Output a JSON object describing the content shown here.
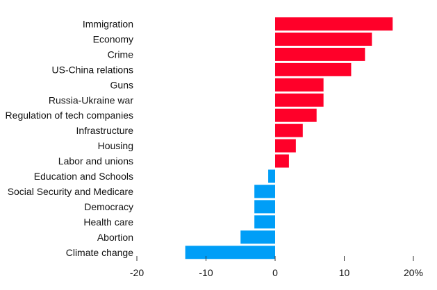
{
  "chart_data": {
    "type": "bar",
    "orientation": "horizontal",
    "categories": [
      "Immigration",
      "Economy",
      "Crime",
      "US-China relations",
      "Guns",
      "Russia-Ukraine war",
      "Regulation of tech companies",
      "Infrastructure",
      "Housing",
      "Labor and unions",
      "Education and Schools",
      "Social Security and Medicare",
      "Democracy",
      "Health care",
      "Abortion",
      "Climate change"
    ],
    "values": [
      17,
      14,
      13,
      11,
      7,
      7,
      6,
      4,
      3,
      2,
      -1,
      -3,
      -3,
      -3,
      -5,
      -13
    ],
    "xlim": [
      -20,
      20
    ],
    "xticks": [
      -20,
      -10,
      0,
      10,
      20
    ],
    "xtick_labels": [
      "-20",
      "-10",
      "0",
      "10",
      "20%"
    ],
    "title": "",
    "xlabel": "",
    "ylabel": "",
    "grid": false,
    "colors": {
      "positive": "#ff0029",
      "negative": "#009ef7"
    }
  }
}
